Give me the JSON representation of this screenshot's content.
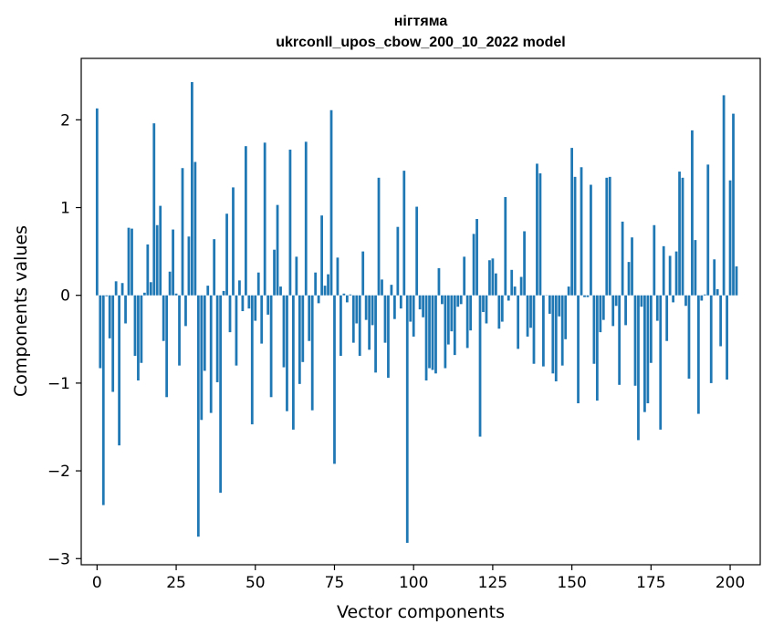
{
  "chart_data": {
    "type": "bar",
    "title": "нігтяма",
    "subtitle": "ukrconll_upos_cbow_200_10_2022 model",
    "xlabel": "Vector components",
    "ylabel": "Components values",
    "xlim": [
      -5,
      209.5
    ],
    "ylim": [
      -3.07,
      2.7
    ],
    "xticks": [
      0,
      25,
      50,
      75,
      100,
      125,
      150,
      175,
      200
    ],
    "xtick_labels": [
      "0",
      "25",
      "50",
      "75",
      "100",
      "125",
      "150",
      "175",
      "200"
    ],
    "yticks": [
      -3,
      -2,
      -1,
      0,
      1,
      2
    ],
    "ytick_labels": [
      "−3",
      "−2",
      "−1",
      "0",
      "1",
      "2"
    ],
    "grid": false,
    "bar_color": "#1f77b4",
    "series": [
      {
        "values": [
          2.13,
          -0.83,
          -2.39,
          -0.01,
          -0.49,
          -1.1,
          0.16,
          -1.71,
          0.14,
          -0.32,
          0.77,
          0.76,
          -0.69,
          -0.97,
          -0.77,
          0.03,
          0.58,
          0.15,
          1.96,
          0.8,
          1.02,
          -0.52,
          -1.16,
          0.27,
          0.75,
          0.02,
          -0.8,
          1.45,
          -0.35,
          0.67,
          2.43,
          1.52,
          -2.75,
          -1.42,
          -0.86,
          0.11,
          -1.34,
          0.64,
          -0.99,
          -2.25,
          0.05,
          0.93,
          -0.42,
          1.23,
          -0.8,
          0.17,
          -0.18,
          1.7,
          -0.15,
          -1.47,
          -0.29,
          0.26,
          -0.55,
          1.74,
          -0.22,
          -1.16,
          0.52,
          1.03,
          0.1,
          -0.82,
          -1.32,
          1.66,
          -1.53,
          0.44,
          -1.01,
          -0.76,
          1.75,
          -0.52,
          -1.31,
          0.26,
          -0.09,
          0.91,
          0.11,
          0.24,
          2.11,
          -1.92,
          0.43,
          -0.69,
          0.02,
          -0.08,
          0.01,
          -0.54,
          -0.32,
          -0.69,
          0.5,
          -0.28,
          -0.62,
          -0.34,
          -0.88,
          1.34,
          0.18,
          -0.54,
          -0.94,
          0.12,
          -0.27,
          0.78,
          -0.15,
          1.42,
          -2.82,
          -0.3,
          -0.47,
          1.01,
          -0.16,
          -0.25,
          -0.97,
          -0.83,
          -0.85,
          -0.89,
          0.31,
          -0.1,
          -0.83,
          -0.56,
          -0.41,
          -0.68,
          -0.13,
          -0.1,
          0.44,
          -0.6,
          -0.4,
          0.7,
          0.87,
          -1.61,
          -0.19,
          -0.32,
          0.4,
          0.42,
          0.25,
          -0.38,
          -0.3,
          1.12,
          -0.06,
          0.29,
          0.1,
          -0.61,
          0.21,
          0.73,
          -0.47,
          -0.37,
          -0.78,
          1.5,
          1.39,
          -0.81,
          0.0,
          -0.21,
          -0.89,
          -0.98,
          -0.24,
          -0.8,
          -0.5,
          0.1,
          1.68,
          1.35,
          -1.23,
          1.46,
          -0.02,
          -0.02,
          1.26,
          -0.78,
          -1.2,
          -0.42,
          -0.28,
          1.34,
          1.35,
          -0.35,
          -0.12,
          -1.02,
          0.84,
          -0.34,
          0.38,
          0.66,
          -1.03,
          -1.65,
          -0.13,
          -1.33,
          -1.23,
          -0.77,
          0.8,
          -0.29,
          -1.53,
          0.56,
          -0.52,
          0.45,
          -0.08,
          0.5,
          1.41,
          1.34,
          -0.12,
          -0.95,
          1.88,
          0.63,
          -1.35,
          -0.06,
          0.01,
          1.49,
          -1.0,
          0.41,
          0.07,
          -0.58,
          2.28,
          -0.96,
          1.31,
          2.07,
          0.33
        ]
      }
    ]
  }
}
